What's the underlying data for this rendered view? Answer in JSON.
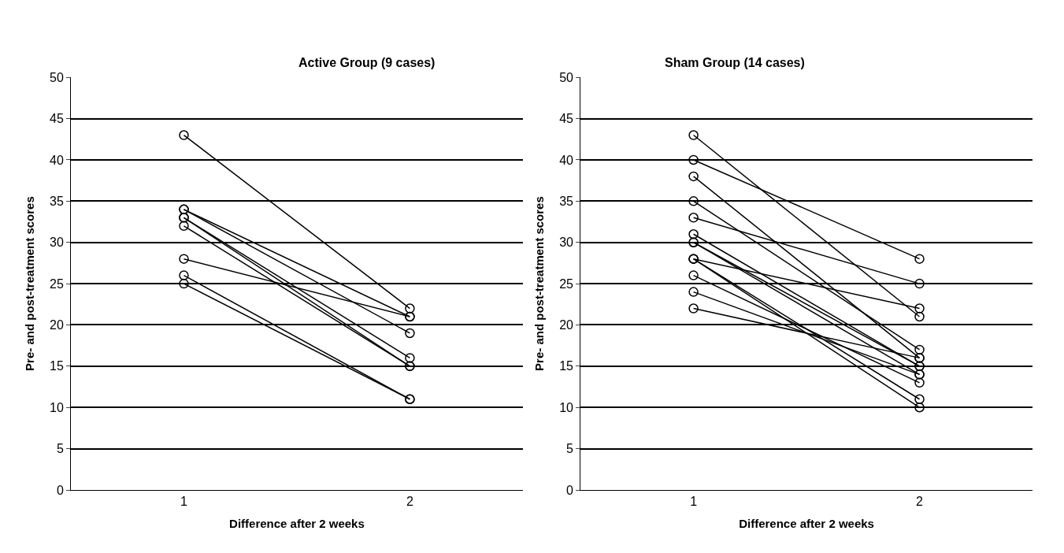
{
  "chart_data": [
    {
      "type": "line",
      "title": "Active Group (9 cases)",
      "xlabel": "Difference after 2 weeks",
      "ylabel": "Pre- and post-treatment scores",
      "categories": [
        "1",
        "2"
      ],
      "ylim": [
        0,
        50
      ],
      "yticks": [
        0,
        5,
        10,
        15,
        20,
        25,
        30,
        35,
        40,
        45,
        50
      ],
      "grid": "y",
      "marker": "circle",
      "series": [
        {
          "color": "#000000",
          "values": [
            43,
            22
          ]
        },
        {
          "color": "#000000",
          "values": [
            34,
            21
          ]
        },
        {
          "color": "#000000",
          "values": [
            34,
            19
          ]
        },
        {
          "color": "#000000",
          "values": [
            33,
            16
          ]
        },
        {
          "color": "#000000",
          "values": [
            32,
            15
          ]
        },
        {
          "color": "#000000",
          "values": [
            33,
            15
          ]
        },
        {
          "color": "#000000",
          "values": [
            28,
            21
          ]
        },
        {
          "color": "#000000",
          "values": [
            26,
            11
          ]
        },
        {
          "color": "#000000",
          "values": [
            25,
            11
          ]
        }
      ]
    },
    {
      "type": "line",
      "title": "Sham Group (14 cases)",
      "xlabel": "Difference after 2 weeks",
      "ylabel": "Pre- and post-treatment scores",
      "categories": [
        "1",
        "2"
      ],
      "ylim": [
        0,
        50
      ],
      "yticks": [
        0,
        5,
        10,
        15,
        20,
        25,
        30,
        35,
        40,
        45,
        50
      ],
      "grid": "y",
      "marker": "circle",
      "series": [
        {
          "color": "#000000",
          "values": [
            43,
            21
          ]
        },
        {
          "color": "#000000",
          "values": [
            40,
            28
          ]
        },
        {
          "color": "#000000",
          "values": [
            38,
            16
          ]
        },
        {
          "color": "#000000",
          "values": [
            35,
            17
          ]
        },
        {
          "color": "#000000",
          "values": [
            33,
            25
          ]
        },
        {
          "color": "#000000",
          "values": [
            31,
            15
          ]
        },
        {
          "color": "#000000",
          "values": [
            30,
            15
          ]
        },
        {
          "color": "#000000",
          "values": [
            30,
            14
          ]
        },
        {
          "color": "#000000",
          "values": [
            28,
            22
          ]
        },
        {
          "color": "#000000",
          "values": [
            28,
            11
          ]
        },
        {
          "color": "#000000",
          "values": [
            28,
            10
          ]
        },
        {
          "color": "#000000",
          "values": [
            26,
            13
          ]
        },
        {
          "color": "#000000",
          "values": [
            24,
            14
          ]
        },
        {
          "color": "#000000",
          "values": [
            22,
            16
          ]
        }
      ]
    }
  ]
}
